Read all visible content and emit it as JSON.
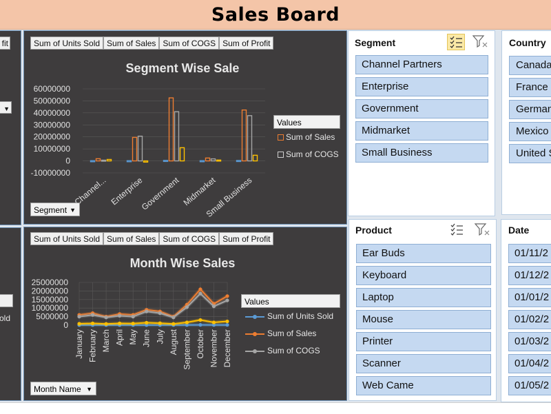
{
  "banner": {
    "title": "Sales Board"
  },
  "left_strip": {
    "top_button": "fit",
    "bottom_button": "old"
  },
  "segment_panel": {
    "buttons": [
      "Sum of Units Sold",
      "Sum of  Sales",
      "Sum of COGS",
      "Sum of Profit"
    ],
    "dropdown": "Segment",
    "legend_title": "Values",
    "legend_items": [
      "Sum of  Sales",
      "Sum of COGS"
    ]
  },
  "month_panel": {
    "buttons": [
      "Sum of Units Sold",
      "Sum of  Sales",
      "Sum of COGS",
      "Sum of Profit"
    ],
    "dropdown": "Month  Name",
    "legend_title": "Values",
    "legend_items": [
      "Sum of Units Sold",
      "Sum of  Sales",
      "Sum of COGS"
    ]
  },
  "chart_data": [
    {
      "type": "bar",
      "title": "Segment Wise Sale",
      "categories": [
        "Channel...",
        "Enterprise",
        "Government",
        "Midmarket",
        "Small Business"
      ],
      "series": [
        {
          "name": "Sum of Units Sold",
          "values": [
            170000,
            170000,
            400000,
            170000,
            340000
          ]
        },
        {
          "name": "Sum of  Sales",
          "values": [
            1800000,
            19600000,
            52500000,
            2400000,
            42400000
          ]
        },
        {
          "name": "Sum of COGS",
          "values": [
            600000,
            20600000,
            41000000,
            1700000,
            37700000
          ]
        },
        {
          "name": "Sum of Profit",
          "values": [
            1200000,
            -1000000,
            11000000,
            700000,
            4700000
          ]
        }
      ],
      "yticks": [
        "60000000",
        "50000000",
        "40000000",
        "30000000",
        "20000000",
        "10000000",
        "0",
        "-10000000"
      ],
      "ylim": [
        -10000000,
        60000000
      ],
      "colors": [
        "#5b9bd5",
        "#ed7d31",
        "#a5a5a5",
        "#ffc000"
      ]
    },
    {
      "type": "line",
      "title": "Month Wise Sales",
      "categories": [
        "January",
        "February",
        "March",
        "April",
        "May",
        "June",
        "July",
        "August",
        "September",
        "October",
        "November",
        "December"
      ],
      "series": [
        {
          "name": "Sum of Units Sold",
          "values": [
            50000,
            60000,
            40000,
            50000,
            60000,
            60000,
            60000,
            60000,
            100000,
            140000,
            90000,
            120000
          ]
        },
        {
          "name": "Sum of  Sales",
          "values": [
            6000000,
            7000000,
            5000000,
            6500000,
            6000000,
            9000000,
            8000000,
            5000000,
            12000000,
            21000000,
            12500000,
            17000000
          ]
        },
        {
          "name": "Sum of COGS",
          "values": [
            5000000,
            6000000,
            4500000,
            5500000,
            5000000,
            8000000,
            7000000,
            4500000,
            10500000,
            18500000,
            11000000,
            14500000
          ]
        },
        {
          "name": "Sum of Profit",
          "values": [
            800000,
            1000000,
            700000,
            1000000,
            900000,
            1400000,
            1100000,
            700000,
            1600000,
            3000000,
            1600000,
            2200000
          ]
        }
      ],
      "yticks": [
        "25000000",
        "20000000",
        "15000000",
        "10000000",
        "5000000",
        "0"
      ],
      "ylim": [
        0,
        25000000
      ],
      "colors": [
        "#5b9bd5",
        "#ed7d31",
        "#a5a5a5",
        "#ffc000"
      ]
    }
  ],
  "slicers": {
    "segment": {
      "title": "Segment",
      "items": [
        "Channel Partners",
        "Enterprise",
        "Government",
        "Midmarket",
        "Small Business"
      ]
    },
    "country": {
      "title": "Country",
      "items": [
        "Canada",
        "France",
        "Germany",
        "Mexico",
        "United States of America"
      ]
    },
    "product": {
      "title": "Product",
      "items": [
        "Ear Buds",
        "Keyboard",
        "Laptop",
        "Mouse",
        "Printer",
        "Scanner",
        "Web Came"
      ]
    },
    "date": {
      "title": "Date",
      "items": [
        "01/11/2",
        "01/12/2",
        "01/01/2",
        "01/02/2",
        "01/03/2",
        "01/04/2",
        "01/05/2"
      ]
    }
  }
}
